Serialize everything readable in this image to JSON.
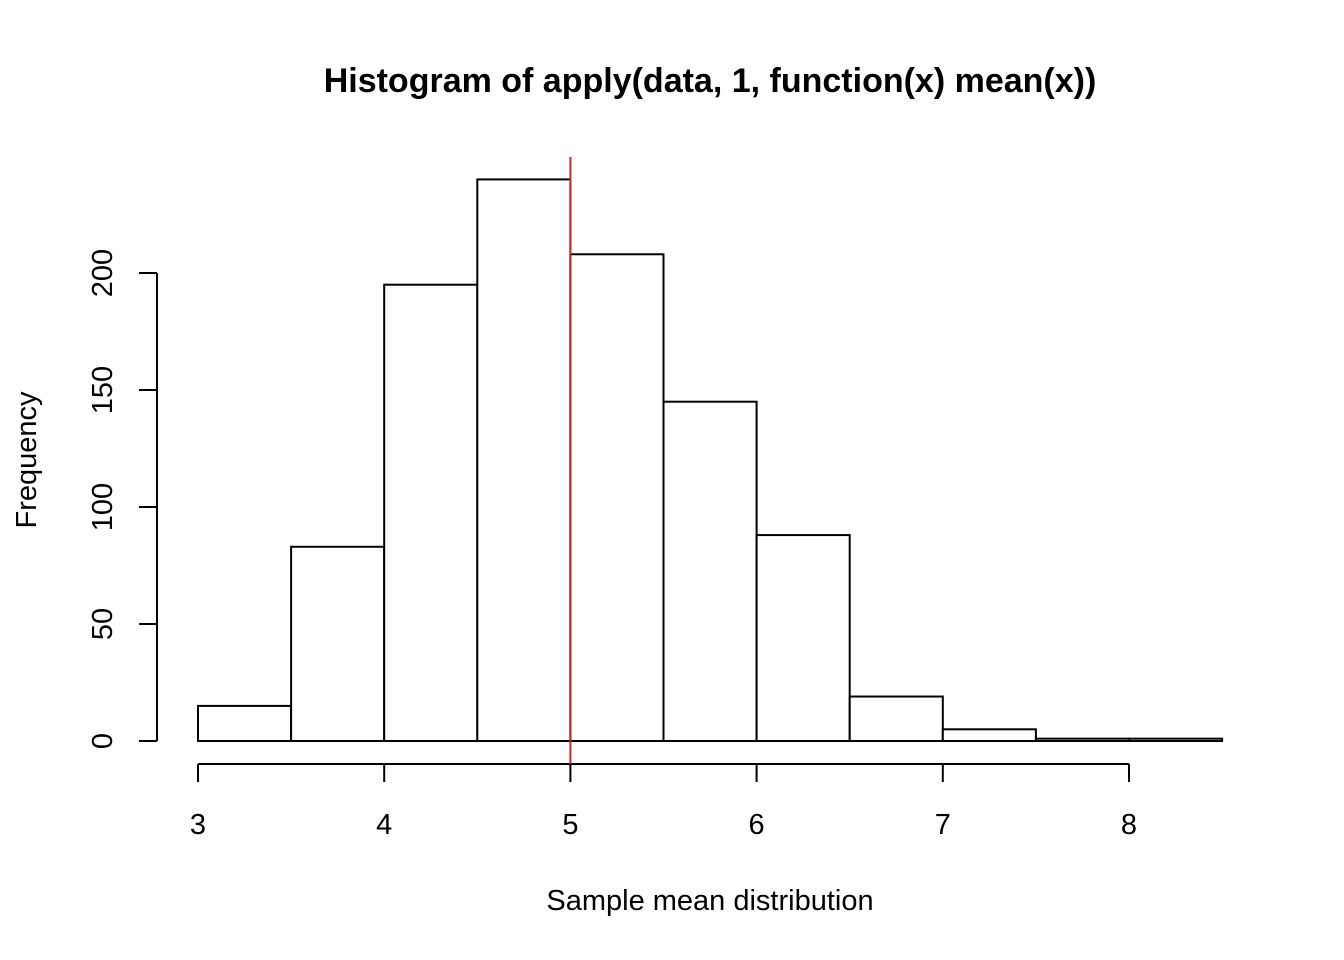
{
  "chart_data": {
    "type": "bar",
    "title": "Histogram of apply(data, 1, function(x) mean(x))",
    "xlabel": "Sample mean distribution",
    "ylabel": "Frequency",
    "bins": [
      {
        "start": 3.0,
        "end": 3.5,
        "count": 15
      },
      {
        "start": 3.5,
        "end": 4.0,
        "count": 83
      },
      {
        "start": 4.0,
        "end": 4.5,
        "count": 195
      },
      {
        "start": 4.5,
        "end": 5.0,
        "count": 240
      },
      {
        "start": 5.0,
        "end": 5.5,
        "count": 208
      },
      {
        "start": 5.5,
        "end": 6.0,
        "count": 145
      },
      {
        "start": 6.0,
        "end": 6.5,
        "count": 88
      },
      {
        "start": 6.5,
        "end": 7.0,
        "count": 19
      },
      {
        "start": 7.0,
        "end": 7.5,
        "count": 5
      },
      {
        "start": 7.5,
        "end": 8.0,
        "count": 1
      },
      {
        "start": 8.0,
        "end": 8.5,
        "count": 1
      }
    ],
    "xlim": [
      3,
      8.5
    ],
    "ylim": [
      0,
      250
    ],
    "x_ticks": [
      "3",
      "4",
      "5",
      "6",
      "7",
      "8"
    ],
    "y_ticks": [
      "0",
      "50",
      "100",
      "150",
      "200"
    ],
    "reference_line": {
      "x": 5,
      "color": "#d62222"
    },
    "bar_fill": "#ffffff",
    "bar_stroke": "#000000",
    "grid": false,
    "legend": "none"
  }
}
